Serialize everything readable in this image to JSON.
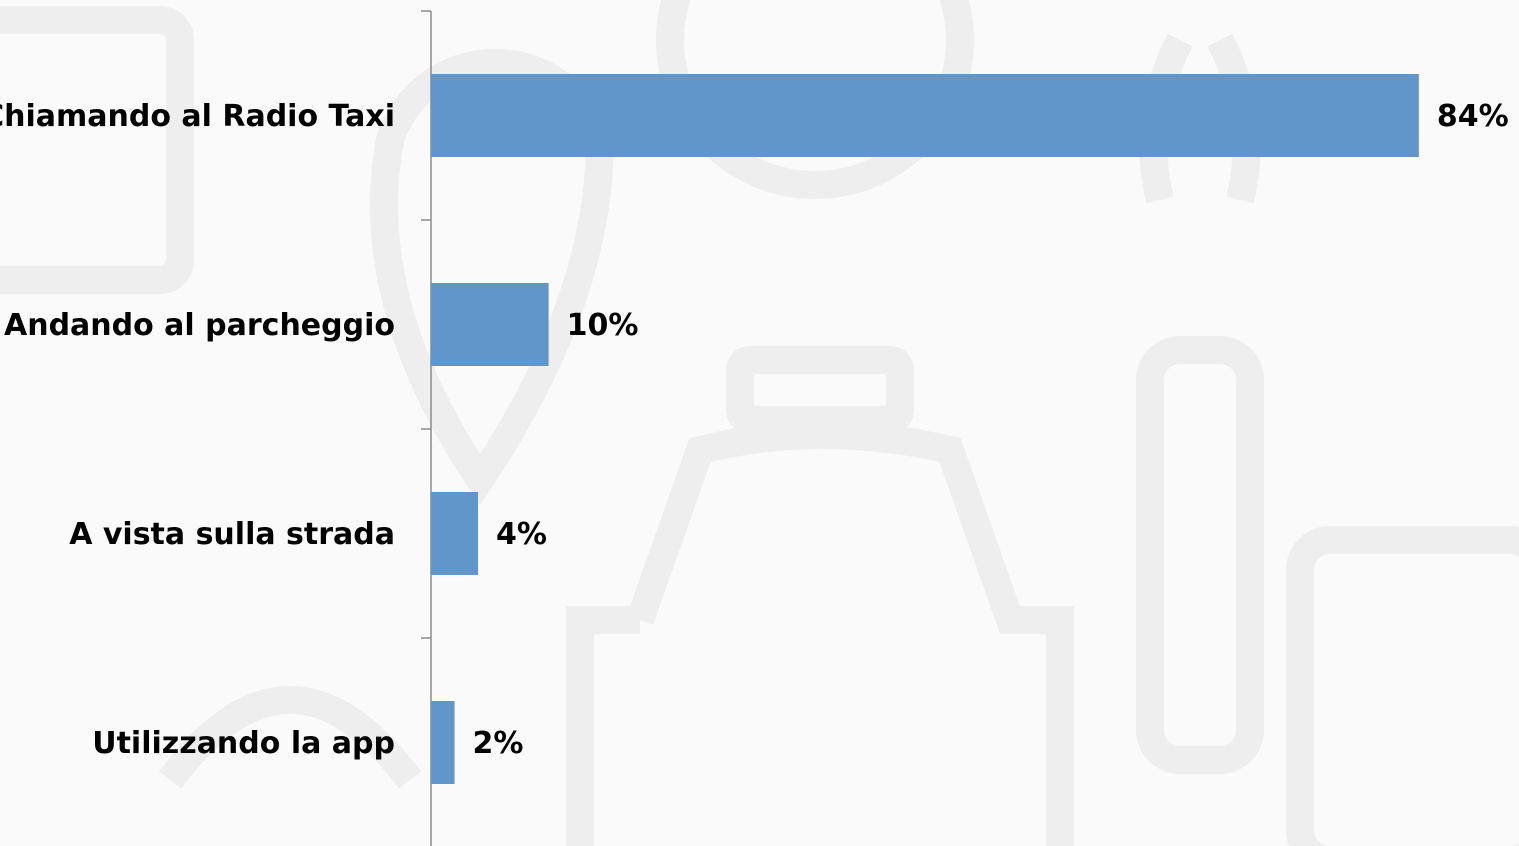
{
  "chart_data": {
    "type": "bar",
    "orientation": "horizontal",
    "categories": [
      "Chiamando al Radio Taxi",
      "Andando al parcheggio",
      "A vista sulla strada",
      "Utilizzando la app"
    ],
    "values": [
      84,
      10,
      4,
      2
    ],
    "value_labels": [
      "84%",
      "10%",
      "4%",
      "2%"
    ],
    "color": "#6096c9"
  }
}
